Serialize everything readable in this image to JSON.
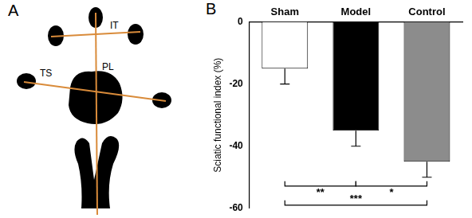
{
  "diagram": {
    "panel_label": "A",
    "labels": {
      "toe_spread": "IT",
      "print_length": "PL",
      "total_spread": "TS"
    }
  },
  "chart_data": {
    "type": "bar",
    "panel_label": "B",
    "categories": [
      "Sham",
      "Model",
      "Control"
    ],
    "values": [
      -15,
      -35,
      -45
    ],
    "errors": [
      5,
      5,
      5
    ],
    "colors": [
      "#ffffff",
      "#000000",
      "#8c8c8c"
    ],
    "ylabel": "Sciatic functional index (%)",
    "ylim": [
      -60,
      0
    ],
    "yticks": [
      -60,
      -40,
      -20,
      0
    ],
    "grid": false,
    "significance": [
      {
        "from": "Sham",
        "to": "Model",
        "label": "**"
      },
      {
        "from": "Model",
        "to": "Control",
        "label": "*"
      },
      {
        "from": "Sham",
        "to": "Control",
        "label": "***"
      }
    ]
  }
}
